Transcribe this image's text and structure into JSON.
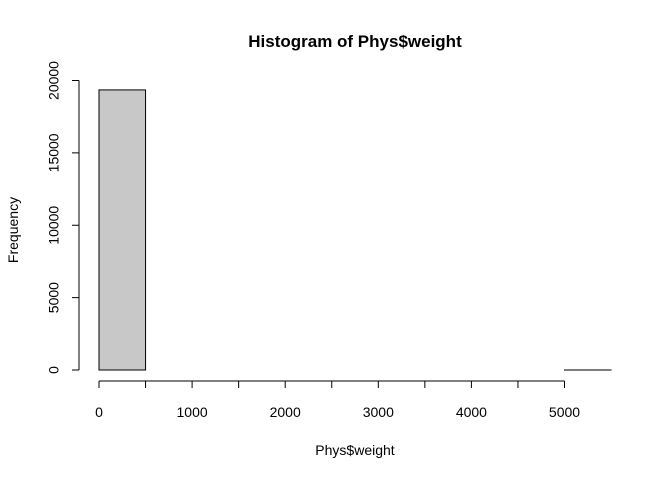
{
  "chart_data": {
    "type": "bar",
    "title": "Histogram of Phys$weight",
    "xlabel": "Phys$weight",
    "ylabel": "Frequency",
    "bin_edges": [
      0,
      500,
      1000,
      1500,
      2000,
      2500,
      3000,
      3500,
      4000,
      4500,
      5000,
      5500
    ],
    "values": [
      19350,
      0,
      0,
      0,
      0,
      0,
      0,
      0,
      0,
      0,
      1
    ],
    "xlim": [
      0,
      5500
    ],
    "ylim": [
      0,
      20000
    ],
    "x_ticks": [
      0,
      500,
      1000,
      1500,
      2000,
      2500,
      3000,
      3500,
      4000,
      4500,
      5000
    ],
    "x_tick_labels": [
      "0",
      "",
      "1000",
      "",
      "2000",
      "",
      "3000",
      "",
      "4000",
      "",
      "5000"
    ],
    "y_ticks": [
      0,
      5000,
      10000,
      15000,
      20000
    ],
    "y_tick_labels": [
      "0",
      "5000",
      "10000",
      "15000",
      "20000"
    ],
    "grid": false,
    "legend": "none",
    "colors": {
      "bar_fill": "#c8c8c8",
      "bar_stroke": "#000000",
      "axis": "#000000"
    }
  }
}
